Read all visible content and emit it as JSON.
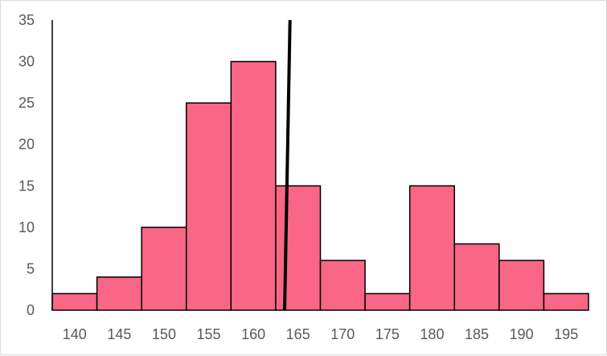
{
  "chart_data": {
    "type": "bar",
    "categories": [
      "140",
      "145",
      "150",
      "155",
      "160",
      "165",
      "170",
      "175",
      "180",
      "185",
      "190",
      "195"
    ],
    "values": [
      2,
      4,
      10,
      25,
      30,
      15,
      6,
      2,
      15,
      8,
      6,
      2
    ],
    "title": "",
    "xlabel": "",
    "ylabel": "",
    "ylim": [
      0,
      35
    ],
    "y_ticks": [
      "0",
      "5",
      "10",
      "15",
      "20",
      "25",
      "30",
      "35"
    ],
    "grid": false,
    "legend": "none",
    "colors": {
      "bar_fill": "#F96686",
      "bar_stroke": "#000000",
      "marker_line": "#000000",
      "axis_text": "#595959"
    },
    "marker_line": {
      "x_bottom": 163.5,
      "x_top": 164.1,
      "y_bottom": 0,
      "y_top": 35
    }
  }
}
